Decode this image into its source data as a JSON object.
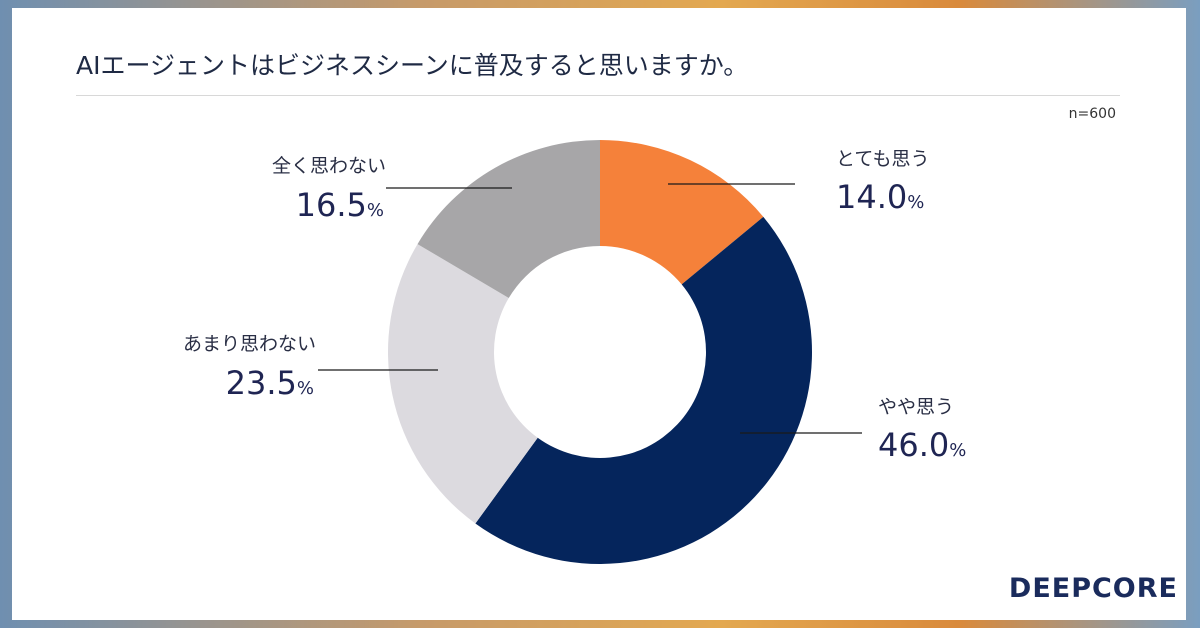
{
  "title": "AIエージェントはビジネスシーンに普及すると思いますか。",
  "sample": "n=600",
  "logo": "DEEPCORE",
  "colors": {
    "very": "#f5813a",
    "somewhat": "#05255c",
    "not_much": "#dcdadf",
    "not_at_all": "#a7a6a8"
  },
  "chart_data": {
    "type": "pie",
    "donut": true,
    "unit": "%",
    "slices": [
      {
        "label": "とても思う",
        "value": 14.0,
        "display": "14.0",
        "color": "#f5813a"
      },
      {
        "label": "やや思う",
        "value": 46.0,
        "display": "46.0",
        "color": "#05255c"
      },
      {
        "label": "あまり思わない",
        "value": 23.5,
        "display": "23.5",
        "color": "#dcdadf"
      },
      {
        "label": "全く思わない",
        "value": 16.5,
        "display": "16.5",
        "color": "#a7a6a8"
      }
    ]
  }
}
